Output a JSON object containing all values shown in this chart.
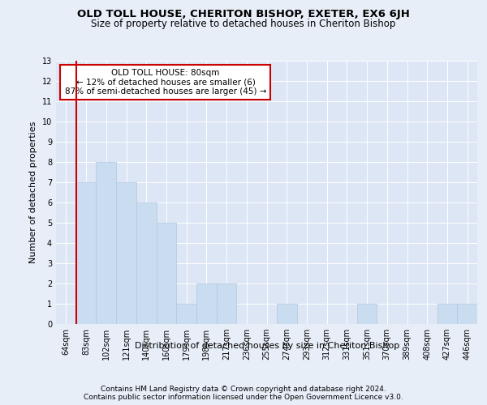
{
  "title": "OLD TOLL HOUSE, CHERITON BISHOP, EXETER, EX6 6JH",
  "subtitle": "Size of property relative to detached houses in Cheriton Bishop",
  "xlabel": "Distribution of detached houses by size in Cheriton Bishop",
  "ylabel": "Number of detached properties",
  "categories": [
    "64sqm",
    "83sqm",
    "102sqm",
    "121sqm",
    "140sqm",
    "160sqm",
    "179sqm",
    "198sqm",
    "217sqm",
    "236sqm",
    "255sqm",
    "274sqm",
    "293sqm",
    "312sqm",
    "331sqm",
    "351sqm",
    "370sqm",
    "389sqm",
    "408sqm",
    "427sqm",
    "446sqm"
  ],
  "values": [
    0,
    7,
    8,
    7,
    6,
    5,
    1,
    2,
    2,
    0,
    0,
    1,
    0,
    0,
    0,
    1,
    0,
    0,
    0,
    1,
    1
  ],
  "bar_color": "#c9dcf0",
  "bar_edgecolor": "#b0c8e0",
  "highlight_line_color": "#cc0000",
  "annotation_box_text": "OLD TOLL HOUSE: 80sqm\n← 12% of detached houses are smaller (6)\n87% of semi-detached houses are larger (45) →",
  "ylim": [
    0,
    13
  ],
  "yticks": [
    0,
    1,
    2,
    3,
    4,
    5,
    6,
    7,
    8,
    9,
    10,
    11,
    12,
    13
  ],
  "footer_line1": "Contains HM Land Registry data © Crown copyright and database right 2024.",
  "footer_line2": "Contains public sector information licensed under the Open Government Licence v3.0.",
  "bg_color": "#e8eef8",
  "plot_bg_color": "#dce6f5",
  "grid_color": "#ffffff",
  "title_fontsize": 9.5,
  "subtitle_fontsize": 8.5,
  "xlabel_fontsize": 8,
  "ylabel_fontsize": 8,
  "tick_fontsize": 7,
  "footer_fontsize": 6.5,
  "annotation_fontsize": 7.5
}
